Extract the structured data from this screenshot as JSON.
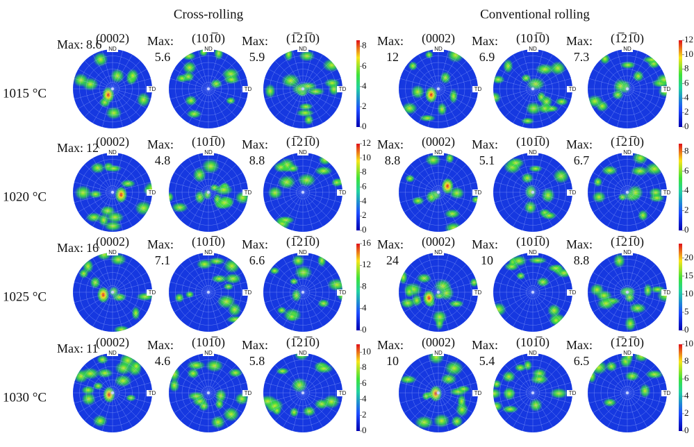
{
  "groups": [
    {
      "title": "Cross-rolling",
      "rows": [
        {
          "figures": [
            {
              "plane": "(0002)",
              "max": 8.6
            },
            {
              "plane": "(101̅0)",
              "max": 5.6
            },
            {
              "plane": "(1̅21̅0)",
              "max": 5.9
            }
          ],
          "colorbar_ticks": [
            0,
            2,
            4,
            6,
            8
          ]
        },
        {
          "figures": [
            {
              "plane": "(0002)",
              "max": 12
            },
            {
              "plane": "(101̅0)",
              "max": 4.8
            },
            {
              "plane": "(1̅21̅0)",
              "max": 8.8
            }
          ],
          "colorbar_ticks": [
            0,
            2,
            4,
            6,
            8,
            10,
            12
          ]
        },
        {
          "figures": [
            {
              "plane": "(0002)",
              "max": 16
            },
            {
              "plane": "(101̅0)",
              "max": 7.1
            },
            {
              "plane": "(1̅21̅0)",
              "max": 6.6
            }
          ],
          "colorbar_ticks": [
            0,
            4,
            8,
            12,
            16
          ]
        },
        {
          "figures": [
            {
              "plane": "(0002)",
              "max": 11
            },
            {
              "plane": "(101̅0)",
              "max": 4.6
            },
            {
              "plane": "(1̅21̅0)",
              "max": 5.8
            }
          ],
          "colorbar_ticks": [
            0,
            2,
            4,
            6,
            8,
            10
          ]
        }
      ]
    },
    {
      "title": "Conventional rolling",
      "rows": [
        {
          "figures": [
            {
              "plane": "(0002)",
              "max": 12
            },
            {
              "plane": "(101̅0)",
              "max": 6.9
            },
            {
              "plane": "(1̅21̅0)",
              "max": 7.3
            }
          ],
          "colorbar_ticks": [
            0,
            2,
            4,
            6,
            8,
            10,
            12
          ]
        },
        {
          "figures": [
            {
              "plane": "(0002)",
              "max": 8.8
            },
            {
              "plane": "(101̅0)",
              "max": 5.1
            },
            {
              "plane": "(1̅21̅0)",
              "max": 6.7
            }
          ],
          "colorbar_ticks": [
            0,
            2,
            4,
            6,
            8
          ]
        },
        {
          "figures": [
            {
              "plane": "(0002)",
              "max": 24
            },
            {
              "plane": "(101̅0)",
              "max": 10
            },
            {
              "plane": "(1̅21̅0)",
              "max": 8.8
            }
          ],
          "colorbar_ticks": [
            0,
            5,
            10,
            15,
            20
          ]
        },
        {
          "figures": [
            {
              "plane": "(0002)",
              "max": 10
            },
            {
              "plane": "(101̅0)",
              "max": 5.4
            },
            {
              "plane": "(1̅21̅0)",
              "max": 6.5
            }
          ],
          "colorbar_ticks": [
            0,
            2,
            4,
            6,
            8,
            10
          ]
        }
      ]
    }
  ],
  "temperatures": [
    "1015 °C",
    "1020 °C",
    "1025 °C",
    "1030 °C"
  ],
  "max_label": "Max:",
  "axis_labels": {
    "nd": "ND",
    "td": "TD"
  }
}
